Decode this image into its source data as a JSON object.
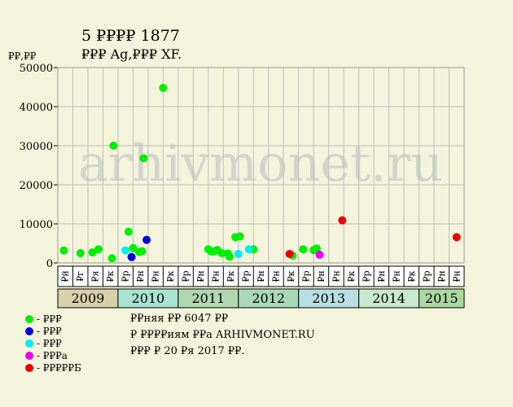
{
  "chart_data": {
    "type": "scatter",
    "title": "5 ₽₽₽₽ 1877",
    "subtitle": "₽₽₽ Ag,₽₽₽ XF.",
    "ylabel": "₽₽,₽₽",
    "ylim": [
      0,
      50000
    ],
    "yticks": [
      0,
      10000,
      20000,
      30000,
      40000,
      50000
    ],
    "watermark": "arhivmonet.ru",
    "month_labels": [
      "₽й",
      "₽г",
      "₽я",
      "₽к",
      "₽р",
      "₽н",
      "₽н",
      "₽к",
      "₽р",
      "₽н",
      "₽н",
      "₽к",
      "₽р",
      "₽н",
      "₽н",
      "₽к",
      "₽р",
      "₽н",
      "₽н",
      "₽к",
      "₽р",
      "₽н",
      "₽н",
      "₽к",
      "₽р",
      "₽н",
      "₽н"
    ],
    "years": [
      {
        "label": "2009",
        "start": 0,
        "span": 4,
        "color": "#d8d0a8"
      },
      {
        "label": "2010",
        "start": 4,
        "span": 4,
        "color": "#a8e4d4"
      },
      {
        "label": "2011",
        "start": 8,
        "span": 4,
        "color": "#b0d8b0"
      },
      {
        "label": "2012",
        "start": 12,
        "span": 4,
        "color": "#a8d8b8"
      },
      {
        "label": "2013",
        "start": 16,
        "span": 4,
        "color": "#b8e0e4"
      },
      {
        "label": "2014",
        "start": 20,
        "span": 4,
        "color": "#c8e8d0"
      },
      {
        "label": "2015",
        "start": 24,
        "span": 3,
        "color": "#a8d8a0"
      }
    ],
    "series": [
      {
        "name": "- ₽₽₽",
        "color": "#00ee00",
        "points": [
          [
            0.4,
            3200
          ],
          [
            1.5,
            2500
          ],
          [
            2.3,
            2700
          ],
          [
            2.7,
            3500
          ],
          [
            3.6,
            1200
          ],
          [
            3.7,
            30000
          ],
          [
            4.7,
            8000
          ],
          [
            5.0,
            3800
          ],
          [
            5.4,
            2800
          ],
          [
            5.6,
            3000
          ],
          [
            5.7,
            26800
          ],
          [
            7.0,
            44800
          ],
          [
            10.0,
            3500
          ],
          [
            10.2,
            2900
          ],
          [
            10.4,
            3000
          ],
          [
            10.6,
            3300
          ],
          [
            10.9,
            2500
          ],
          [
            11.3,
            2400
          ],
          [
            11.4,
            1600
          ],
          [
            11.8,
            6600
          ],
          [
            12.1,
            6800
          ],
          [
            13.0,
            3500
          ],
          [
            15.6,
            1900
          ],
          [
            16.3,
            3500
          ],
          [
            17.0,
            3300
          ],
          [
            17.2,
            3700
          ]
        ]
      },
      {
        "name": "- ₽₽₽",
        "color": "#0000dd",
        "points": [
          [
            4.9,
            1500
          ],
          [
            5.9,
            5900
          ]
        ]
      },
      {
        "name": "- ₽₽₽",
        "color": "#00eeee",
        "points": [
          [
            4.5,
            3200
          ],
          [
            12.0,
            2300
          ],
          [
            12.7,
            3500
          ]
        ]
      },
      {
        "name": "- ₽₽₽а",
        "color": "#ee00ee",
        "points": [
          [
            17.4,
            2100
          ]
        ]
      },
      {
        "name": "- ₽₽₽₽₽Б",
        "color": "#ee0000",
        "points": [
          [
            15.4,
            2300
          ],
          [
            18.9,
            10900
          ],
          [
            26.5,
            6600
          ]
        ]
      }
    ]
  },
  "notes": [
    "₽₽няя ₽₽ 6047 ₽₽",
    "₽ ₽₽₽₽иям ₽₽а ARHIVMONET.RU",
    "₽₽₽ ₽ 20 ₽я 2017 ₽₽."
  ]
}
